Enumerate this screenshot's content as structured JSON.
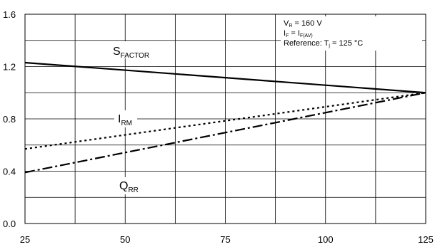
{
  "chart_data": {
    "type": "line",
    "title": "",
    "xlabel": "",
    "ylabel": "",
    "xlim": [
      25,
      125
    ],
    "ylim": [
      0.0,
      1.6
    ],
    "grid": true,
    "x_ticks": [
      "25",
      "50",
      "75",
      "100",
      "125"
    ],
    "y_ticks": [
      "0.0",
      "0.4",
      "0.8",
      "1.2",
      "1.6"
    ],
    "series": [
      {
        "name": "S",
        "name_sub": "FACTOR",
        "style": "solid",
        "x": [
          25,
          125
        ],
        "y": [
          1.23,
          1.0
        ]
      },
      {
        "name": "I",
        "name_sub": "RM",
        "style": "dotted",
        "x": [
          25,
          125
        ],
        "y": [
          0.57,
          1.0
        ]
      },
      {
        "name": "Q",
        "name_sub": "RR",
        "style": "dashdot",
        "x": [
          25,
          125
        ],
        "y": [
          0.39,
          1.0
        ]
      }
    ],
    "annotations": {
      "line1_main": "V",
      "line1_sub": "R",
      "line1_rest": " = 160 V",
      "line2_main": "I",
      "line2_sub": "F",
      "line2_mid": " = I",
      "line2_sub2": "F(AV)",
      "line3_main": "Reference: T",
      "line3_sub": "j",
      "line3_rest": " = 125 °C"
    }
  }
}
